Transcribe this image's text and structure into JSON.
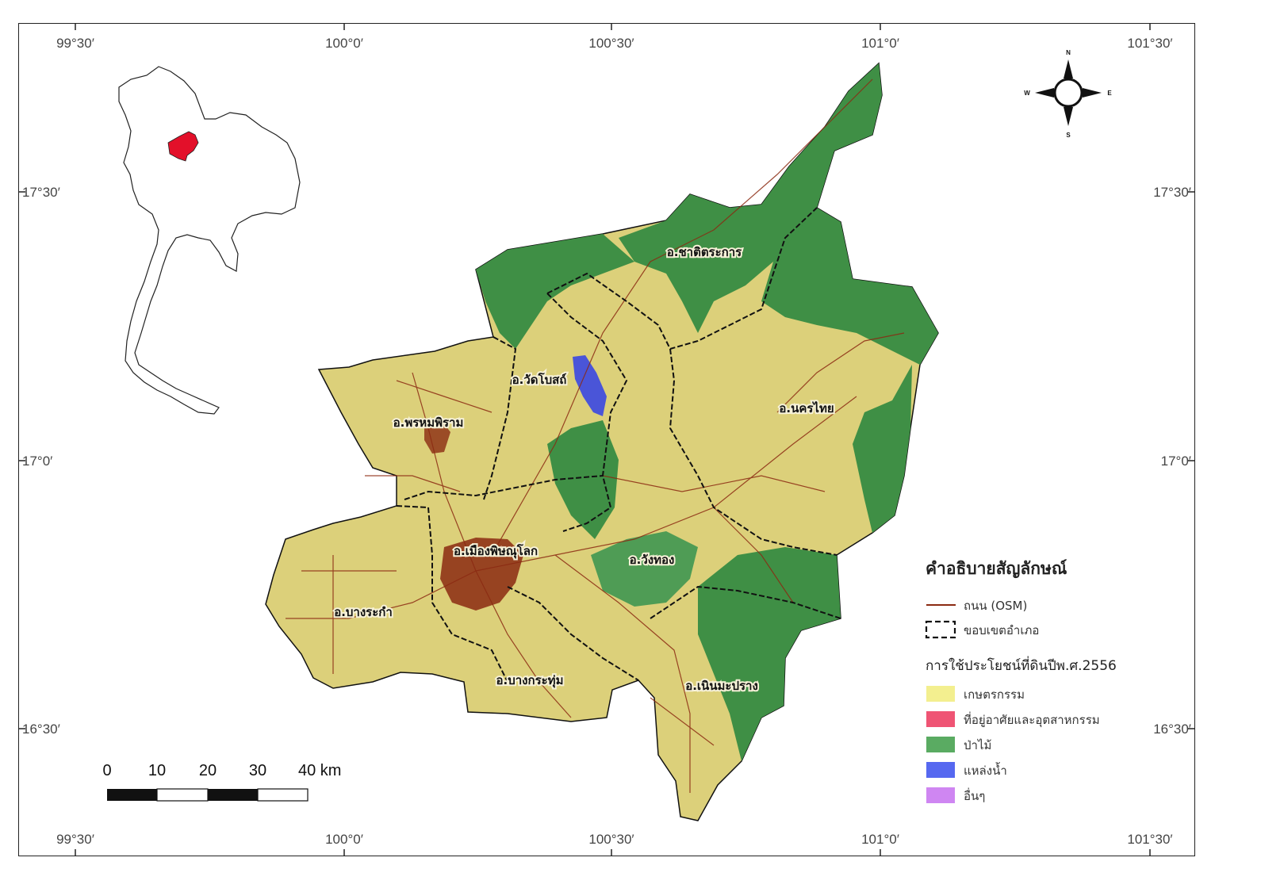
{
  "coordinates": {
    "top": [
      "99°30′",
      "100°0′",
      "100°30′",
      "101°0′",
      "101°30′"
    ],
    "bottom": [
      "99°30′",
      "100°0′",
      "100°30′",
      "101°0′",
      "101°30′"
    ],
    "left": [
      "17°30′",
      "17°0′",
      "16°30′"
    ],
    "right": [
      "17°30′",
      "17°0′",
      "16°30′"
    ]
  },
  "districts": [
    {
      "id": "chat",
      "label": "อ.ชาติตระการ"
    },
    {
      "id": "wat",
      "label": "อ.วัดโบสถ์"
    },
    {
      "id": "nakhon",
      "label": "อ.นครไทย"
    },
    {
      "id": "phrom",
      "label": "อ.พรหมพิราม"
    },
    {
      "id": "mueang",
      "label": "อ.เมืองพิษณุโลก"
    },
    {
      "id": "wang",
      "label": "อ.วังทอง"
    },
    {
      "id": "bangrakam",
      "label": "อ.บางระกำ"
    },
    {
      "id": "bangkrathum",
      "label": "อ.บางกระทุ่ม"
    },
    {
      "id": "noen",
      "label": "อ.เนินมะปราง"
    }
  ],
  "legend": {
    "title": "คำอธิบายสัญลักษณ์",
    "road": "ถนน (OSM)",
    "boundary": "ขอบเขตอำเภอ",
    "landuse_title": "การใช้ประโยชน์ที่ดินปีพ.ศ.2556",
    "classes": [
      {
        "label": "เกษตรกรรม",
        "color": "#f3ef8f"
      },
      {
        "label": "ที่อยู่อาศัยและอุตสาหกรรม",
        "color": "#ef5474"
      },
      {
        "label": "ป่าไม้",
        "color": "#5aab62"
      },
      {
        "label": "แหล่งน้ำ",
        "color": "#5668f0"
      },
      {
        "label": "อื่นๆ",
        "color": "#cf86f2"
      }
    ]
  },
  "scale_bar": {
    "ticks": [
      "0",
      "10",
      "20",
      "30",
      "40 km"
    ]
  },
  "compass": {
    "n": "N",
    "s": "S",
    "e": "E",
    "w": "W"
  },
  "colors": {
    "agriculture": "#dcd07a",
    "forest": "#3f8f45",
    "road": "#8b2a12",
    "urban": "#8b2a12",
    "water": "#4a55d8",
    "highlight": "#e3102a"
  }
}
